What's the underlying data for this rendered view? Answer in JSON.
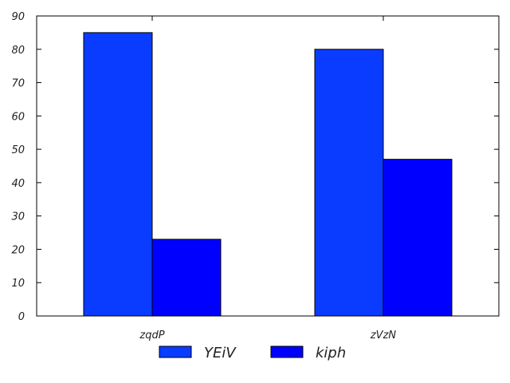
{
  "chart_data": {
    "type": "bar",
    "categories": [
      "zqdP",
      "zVzN"
    ],
    "series": [
      {
        "name": "YEiV",
        "values": [
          85,
          80
        ],
        "color": "#0a3cff"
      },
      {
        "name": "kiph",
        "values": [
          23,
          47
        ],
        "color": "#0000ff"
      }
    ],
    "ylim": [
      0,
      90
    ],
    "yticks": [
      0,
      10,
      20,
      30,
      40,
      50,
      60,
      70,
      80,
      90
    ],
    "grid": false,
    "legend": "bottom-center"
  }
}
